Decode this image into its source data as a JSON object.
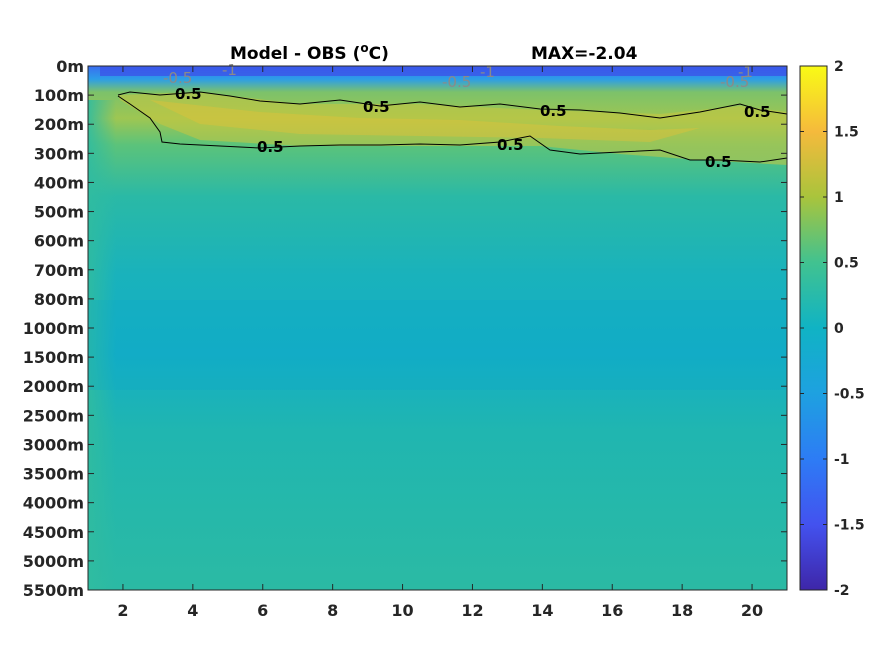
{
  "title": {
    "left": "Model - OBS (",
    "unit_o": "o",
    "unit_c": "C)",
    "right": "MAX=-2.04"
  },
  "chart_data": {
    "type": "heatmap",
    "title": "Model - OBS (°C)",
    "annotation": "MAX=-2.04",
    "colormap": "parula",
    "clim": [
      -2,
      2
    ],
    "x_ticks": [
      "2",
      "4",
      "6",
      "8",
      "10",
      "12",
      "14",
      "16",
      "18",
      "20"
    ],
    "x_values": [
      2,
      4,
      6,
      8,
      10,
      12,
      14,
      16,
      18,
      20
    ],
    "xlim": [
      1,
      21
    ],
    "y_ticks": [
      "0m",
      "100m",
      "200m",
      "300m",
      "400m",
      "500m",
      "600m",
      "700m",
      "800m",
      "1000m",
      "1500m",
      "2000m",
      "2500m",
      "3000m",
      "3500m",
      "4000m",
      "4500m",
      "5000m",
      "5500m"
    ],
    "colorbar_ticks": [
      "2",
      "1.5",
      "1",
      "0.5",
      "0",
      "-0.5",
      "-1",
      "-1.5",
      "-2"
    ],
    "colorbar_values": [
      2,
      1.5,
      1,
      0.5,
      0,
      -0.5,
      -1,
      -1.5,
      -2
    ],
    "contour_levels": [
      0.5,
      -0.5,
      -1
    ],
    "contour_labels": [
      "0.5",
      "0.5",
      "0.5",
      "0.5",
      "0.5",
      "0.5",
      "0.5",
      "-0.5",
      "-0.5",
      "-0.5",
      "-1",
      "-1",
      "-1"
    ],
    "grid": false
  }
}
